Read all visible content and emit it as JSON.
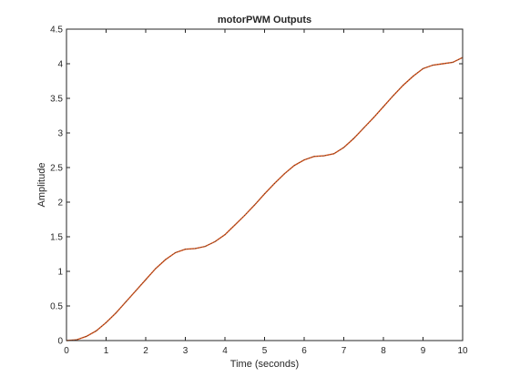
{
  "chart_data": {
    "type": "line",
    "title": "motorPWM Outputs",
    "xlabel": "Time (seconds)",
    "ylabel": "Amplitude",
    "xlim": [
      0,
      10
    ],
    "ylim": [
      0,
      4.5
    ],
    "xticks": [
      0,
      1,
      2,
      3,
      4,
      5,
      6,
      7,
      8,
      9,
      10
    ],
    "yticks": [
      0,
      0.5,
      1,
      1.5,
      2,
      2.5,
      3,
      3.5,
      4,
      4.5
    ],
    "xtick_labels": [
      "0",
      "1",
      "2",
      "3",
      "4",
      "5",
      "6",
      "7",
      "8",
      "9",
      "10"
    ],
    "ytick_labels": [
      "0",
      "0.5",
      "1",
      "1.5",
      "2",
      "2.5",
      "3",
      "3.5",
      "4",
      "4.5"
    ],
    "grid": false,
    "series": [
      {
        "color": "#d95319",
        "x": [
          0,
          0.25,
          0.5,
          0.75,
          1.0,
          1.25,
          1.5,
          1.75,
          2.0,
          2.25,
          2.5,
          2.75,
          3.0,
          3.25,
          3.5,
          3.75,
          4.0,
          4.25,
          4.5,
          4.75,
          5.0,
          5.25,
          5.5,
          5.75,
          6.0,
          6.25,
          6.5,
          6.75,
          7.0,
          7.25,
          7.5,
          7.75,
          8.0,
          8.25,
          8.5,
          8.75,
          9.0,
          9.25,
          9.5,
          9.75,
          10.0
        ],
        "y": [
          0.0,
          0.01,
          0.06,
          0.14,
          0.26,
          0.4,
          0.56,
          0.72,
          0.88,
          1.04,
          1.17,
          1.27,
          1.32,
          1.33,
          1.36,
          1.43,
          1.53,
          1.67,
          1.81,
          1.96,
          2.12,
          2.27,
          2.41,
          2.53,
          2.61,
          2.66,
          2.67,
          2.7,
          2.79,
          2.92,
          3.07,
          3.22,
          3.38,
          3.54,
          3.69,
          3.82,
          3.93,
          3.98,
          4.0,
          4.02,
          4.09
        ]
      },
      {
        "color": "#3a3a3a",
        "x": [
          0,
          0.25,
          0.5,
          0.75,
          1.0,
          1.25,
          1.5,
          1.75,
          2.0,
          2.25,
          2.5,
          2.75,
          3.0,
          3.25,
          3.5,
          3.75,
          4.0,
          4.25,
          4.5,
          4.75,
          5.0,
          5.25,
          5.5,
          5.75,
          6.0,
          6.25,
          6.5,
          6.75,
          7.0,
          7.25,
          7.5,
          7.75,
          8.0,
          8.25,
          8.5,
          8.75,
          9.0,
          9.25,
          9.5,
          9.75,
          10.0
        ],
        "y": [
          0.0,
          0.01,
          0.06,
          0.14,
          0.26,
          0.4,
          0.56,
          0.72,
          0.88,
          1.04,
          1.17,
          1.27,
          1.32,
          1.33,
          1.36,
          1.43,
          1.53,
          1.67,
          1.81,
          1.96,
          2.12,
          2.27,
          2.41,
          2.53,
          2.61,
          2.66,
          2.67,
          2.7,
          2.79,
          2.92,
          3.07,
          3.22,
          3.38,
          3.54,
          3.69,
          3.82,
          3.93,
          3.98,
          4.0,
          4.02,
          4.09
        ]
      }
    ]
  }
}
